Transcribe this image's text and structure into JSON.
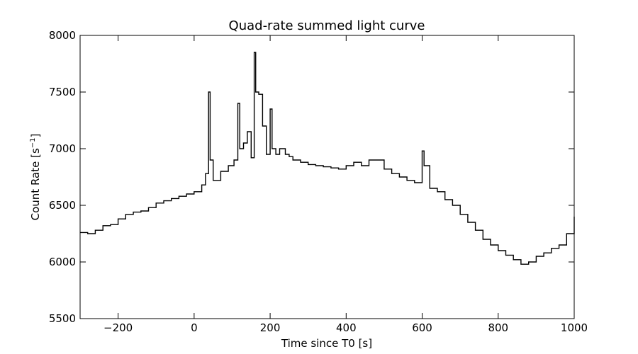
{
  "chart_data": {
    "type": "line",
    "title": "Quad-rate summed light curve",
    "xlabel": "Time since T0 [s]",
    "ylabel_main": "Count Rate [s",
    "ylabel_sup": "−1",
    "ylabel_end": "]",
    "xlim": [
      -300,
      1000
    ],
    "ylim": [
      5500,
      8000
    ],
    "xticks": [
      -200,
      0,
      200,
      400,
      600,
      800,
      1000
    ],
    "xtick_labels": [
      "−200",
      "0",
      "200",
      "400",
      "600",
      "800",
      "1000"
    ],
    "yticks": [
      5500,
      6000,
      6500,
      7000,
      7500,
      8000
    ],
    "ytick_labels": [
      "5500",
      "6000",
      "6500",
      "7000",
      "7500",
      "8000"
    ],
    "grid": false,
    "line_color": "#000000",
    "series": [
      {
        "x": [
          -300,
          -280,
          -260,
          -240,
          -220,
          -200,
          -180,
          -160,
          -140,
          -120,
          -100,
          -80,
          -60,
          -40,
          -20,
          0,
          20,
          30,
          38,
          42,
          50,
          70,
          90,
          105,
          115,
          120,
          130,
          140,
          150,
          158,
          162,
          170,
          180,
          190,
          200,
          205,
          215,
          225,
          240,
          250,
          260,
          280,
          300,
          320,
          340,
          360,
          380,
          400,
          420,
          440,
          460,
          480,
          500,
          520,
          540,
          560,
          580,
          600,
          605,
          620,
          640,
          660,
          680,
          700,
          720,
          740,
          760,
          780,
          800,
          820,
          840,
          860,
          880,
          900,
          920,
          940,
          960,
          980,
          1000
        ],
        "y": [
          6260,
          6250,
          6280,
          6320,
          6330,
          6380,
          6420,
          6440,
          6450,
          6480,
          6520,
          6540,
          6560,
          6580,
          6600,
          6620,
          6680,
          6780,
          7500,
          6900,
          6720,
          6800,
          6850,
          6900,
          7400,
          7000,
          7050,
          7150,
          6920,
          7850,
          7500,
          7480,
          7200,
          6950,
          7350,
          7000,
          6950,
          7000,
          6950,
          6930,
          6900,
          6880,
          6860,
          6850,
          6840,
          6830,
          6820,
          6850,
          6880,
          6850,
          6900,
          6900,
          6820,
          6780,
          6750,
          6720,
          6700,
          6980,
          6850,
          6650,
          6620,
          6550,
          6500,
          6420,
          6350,
          6280,
          6200,
          6150,
          6100,
          6060,
          6020,
          5980,
          6000,
          6050,
          6080,
          6120,
          6150,
          6250,
          6400
        ]
      }
    ]
  }
}
